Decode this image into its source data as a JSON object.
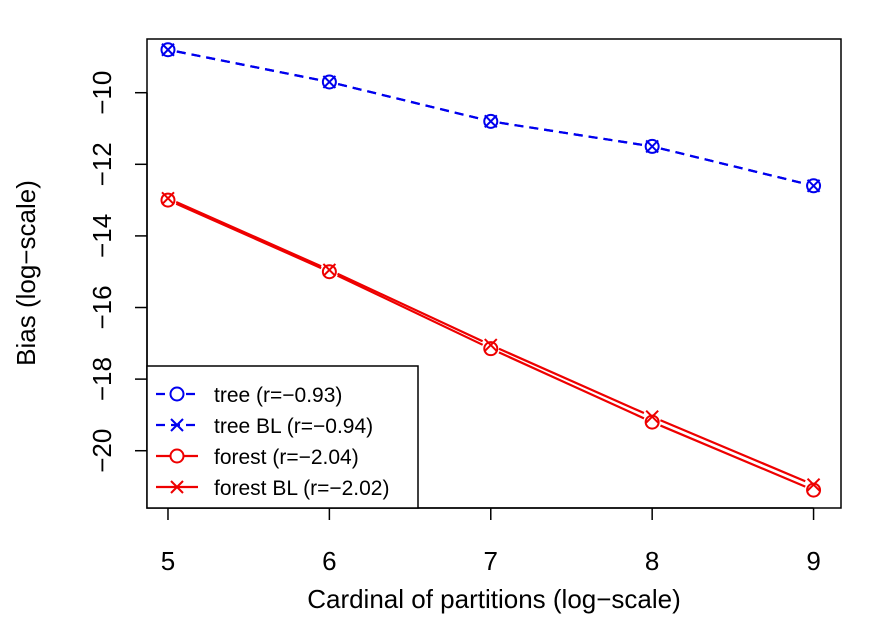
{
  "chart_data": {
    "type": "line",
    "title": "",
    "xlabel": "Cardinal of partitions (log−scale)",
    "ylabel": "Bias (log−scale)",
    "x": [
      5,
      6,
      7,
      8,
      9
    ],
    "xlim": [
      4.87,
      9.17
    ],
    "ylim": [
      -21.6,
      -8.5
    ],
    "xticks": [
      5,
      6,
      7,
      8,
      9
    ],
    "xtick_labels": [
      "5",
      "6",
      "7",
      "8",
      "9"
    ],
    "yticks": [
      -10,
      -12,
      -14,
      -16,
      -18,
      -20
    ],
    "ytick_labels": [
      "−10",
      "−12",
      "−14",
      "−16",
      "−18",
      "−20"
    ],
    "grid": false,
    "legend_position": "bottom-left",
    "series": [
      {
        "name": "tree",
        "legend_label": "tree (r=−0.93)",
        "r": -0.93,
        "color": "#0000ee",
        "dash": "dashed",
        "marker": "circle",
        "values": [
          -8.8,
          -9.7,
          -10.8,
          -11.5,
          -12.6
        ]
      },
      {
        "name": "tree BL",
        "legend_label": "tree BL (r=−0.94)",
        "r": -0.94,
        "color": "#0000ee",
        "dash": "dashed",
        "marker": "cross",
        "values": [
          -8.8,
          -9.7,
          -10.8,
          -11.5,
          -12.6
        ]
      },
      {
        "name": "forest",
        "legend_label": "forest (r=−2.04)",
        "r": -2.04,
        "color": "#ee0000",
        "dash": "solid",
        "marker": "circle",
        "values": [
          -13.0,
          -15.0,
          -17.15,
          -19.2,
          -21.1
        ]
      },
      {
        "name": "forest BL",
        "legend_label": "forest BL (r=−2.02)",
        "r": -2.02,
        "color": "#ee0000",
        "dash": "solid",
        "marker": "cross",
        "values": [
          -12.95,
          -14.95,
          -17.05,
          -19.05,
          -20.95
        ]
      }
    ]
  }
}
